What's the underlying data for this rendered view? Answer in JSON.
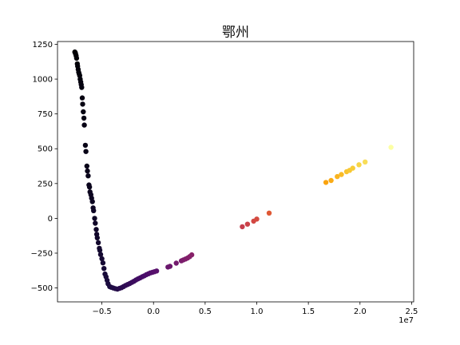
{
  "chart_data": {
    "type": "scatter",
    "title": "鄂州",
    "xlabel": "",
    "ylabel": "",
    "x_offset_text": "1e7",
    "xlim": [
      -0.93,
      2.52
    ],
    "ylim": [
      -600,
      1270
    ],
    "x_ticks": [
      -0.5,
      0.0,
      0.5,
      1.0,
      1.5,
      2.0,
      2.5
    ],
    "x_tick_labels": [
      "−0.5",
      "0.0",
      "0.5",
      "1.0",
      "1.5",
      "2.0",
      "2.5"
    ],
    "y_ticks": [
      -500,
      -250,
      0,
      250,
      500,
      750,
      1000,
      1250
    ],
    "y_tick_labels": [
      "−500",
      "−250",
      "0",
      "250",
      "500",
      "750",
      "1000",
      "1250"
    ],
    "grid": false,
    "colormap": "inferno",
    "color_stops": [
      "#000004",
      "#1b0c41",
      "#4a0c6b",
      "#781c6d",
      "#a52c60",
      "#cf4446",
      "#ed6925",
      "#fb9b06",
      "#f7d13d",
      "#fcffa4"
    ],
    "points": [
      [
        -0.762,
        1195
      ],
      [
        -0.758,
        1190
      ],
      [
        -0.755,
        1182
      ],
      [
        -0.75,
        1168
      ],
      [
        -0.745,
        1150
      ],
      [
        -0.738,
        1110
      ],
      [
        -0.735,
        1093
      ],
      [
        -0.73,
        1070
      ],
      [
        -0.725,
        1050
      ],
      [
        -0.72,
        1038
      ],
      [
        -0.715,
        1025
      ],
      [
        -0.71,
        1000
      ],
      [
        -0.705,
        980
      ],
      [
        -0.7,
        960
      ],
      [
        -0.696,
        940
      ],
      [
        -0.69,
        865
      ],
      [
        -0.686,
        820
      ],
      [
        -0.68,
        765
      ],
      [
        -0.674,
        720
      ],
      [
        -0.67,
        670
      ],
      [
        -0.66,
        525
      ],
      [
        -0.655,
        480
      ],
      [
        -0.645,
        375
      ],
      [
        -0.64,
        340
      ],
      [
        -0.633,
        305
      ],
      [
        -0.625,
        240
      ],
      [
        -0.62,
        225
      ],
      [
        -0.615,
        190
      ],
      [
        -0.607,
        170
      ],
      [
        -0.6,
        145
      ],
      [
        -0.592,
        120
      ],
      [
        -0.585,
        75
      ],
      [
        -0.58,
        55
      ],
      [
        -0.57,
        0
      ],
      [
        -0.564,
        -35
      ],
      [
        -0.555,
        -80
      ],
      [
        -0.55,
        -115
      ],
      [
        -0.545,
        -140
      ],
      [
        -0.535,
        -175
      ],
      [
        -0.525,
        -215
      ],
      [
        -0.52,
        -230
      ],
      [
        -0.512,
        -260
      ],
      [
        -0.5,
        -290
      ],
      [
        -0.49,
        -320
      ],
      [
        -0.48,
        -360
      ],
      [
        -0.47,
        -400
      ],
      [
        -0.46,
        -420
      ],
      [
        -0.45,
        -445
      ],
      [
        -0.44,
        -470
      ],
      [
        -0.425,
        -490
      ],
      [
        -0.41,
        -495
      ],
      [
        -0.39,
        -500
      ],
      [
        -0.37,
        -505
      ],
      [
        -0.35,
        -508
      ],
      [
        -0.33,
        -503
      ],
      [
        -0.31,
        -498
      ],
      [
        -0.29,
        -490
      ],
      [
        -0.27,
        -482
      ],
      [
        -0.25,
        -475
      ],
      [
        -0.23,
        -468
      ],
      [
        -0.21,
        -460
      ],
      [
        -0.19,
        -452
      ],
      [
        -0.17,
        -443
      ],
      [
        -0.15,
        -435
      ],
      [
        -0.13,
        -428
      ],
      [
        -0.11,
        -420
      ],
      [
        -0.09,
        -413
      ],
      [
        -0.07,
        -405
      ],
      [
        -0.05,
        -398
      ],
      [
        -0.03,
        -392
      ],
      [
        -0.01,
        -388
      ],
      [
        0.01,
        -383
      ],
      [
        0.03,
        -378
      ],
      [
        0.14,
        -350
      ],
      [
        0.16,
        -345
      ],
      [
        0.22,
        -322
      ],
      [
        0.27,
        -305
      ],
      [
        0.29,
        -298
      ],
      [
        0.31,
        -292
      ],
      [
        0.33,
        -285
      ],
      [
        0.35,
        -275
      ],
      [
        0.37,
        -262
      ],
      [
        0.86,
        -60
      ],
      [
        0.91,
        -42
      ],
      [
        0.97,
        -20
      ],
      [
        1.0,
        -5
      ],
      [
        1.12,
        38
      ],
      [
        1.67,
        258
      ],
      [
        1.72,
        272
      ],
      [
        1.78,
        300
      ],
      [
        1.82,
        315
      ],
      [
        1.87,
        335
      ],
      [
        1.9,
        345
      ],
      [
        1.93,
        360
      ],
      [
        1.99,
        385
      ],
      [
        2.05,
        405
      ],
      [
        2.3,
        510
      ]
    ]
  }
}
